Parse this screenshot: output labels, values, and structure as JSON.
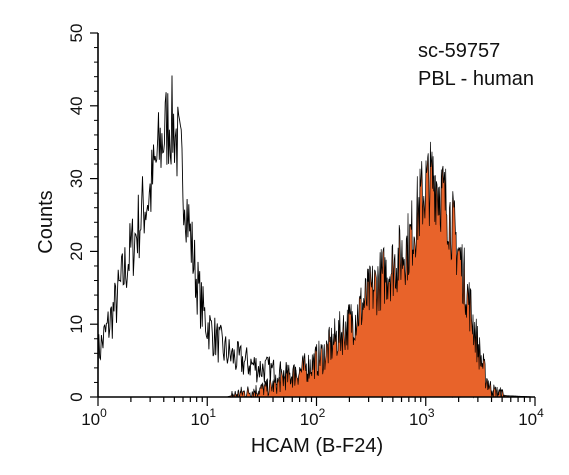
{
  "chart_data": {
    "type": "histogram",
    "xlabel": "HCAM (B-F24)",
    "ylabel": "Counts",
    "xscale": "log",
    "xlim": [
      1,
      10000
    ],
    "ylim": [
      0,
      50
    ],
    "x_ticks": [
      {
        "base": "10",
        "exp": "0"
      },
      {
        "base": "10",
        "exp": "1"
      },
      {
        "base": "10",
        "exp": "2"
      },
      {
        "base": "10",
        "exp": "3"
      },
      {
        "base": "10",
        "exp": "4"
      }
    ],
    "y_ticks": [
      "0",
      "10",
      "20",
      "30",
      "40",
      "50"
    ],
    "annotations": [
      "sc-59757",
      "PBL - human"
    ],
    "series": [
      {
        "style": "outline",
        "color": "#000000",
        "points": [
          [
            1.0,
            6
          ],
          [
            1.2,
            9
          ],
          [
            1.4,
            12
          ],
          [
            1.6,
            15
          ],
          [
            1.8,
            18
          ],
          [
            2.0,
            20
          ],
          [
            2.3,
            23
          ],
          [
            2.6,
            26
          ],
          [
            3.0,
            28
          ],
          [
            3.5,
            33
          ],
          [
            4.0,
            36
          ],
          [
            4.5,
            38
          ],
          [
            5.0,
            37
          ],
          [
            5.6,
            33
          ],
          [
            6.3,
            28
          ],
          [
            7.0,
            22
          ],
          [
            8.0,
            16
          ],
          [
            9.0,
            12
          ],
          [
            10,
            10
          ],
          [
            12,
            8
          ],
          [
            14,
            6.5
          ],
          [
            17,
            5.5
          ],
          [
            20,
            5
          ],
          [
            25,
            4.5
          ],
          [
            30,
            4
          ],
          [
            40,
            3.5
          ],
          [
            50,
            3
          ],
          [
            70,
            2.5
          ],
          [
            100,
            2
          ],
          [
            150,
            1.8
          ],
          [
            200,
            1.5
          ],
          [
            300,
            1.2
          ],
          [
            500,
            1
          ],
          [
            700,
            0.8
          ],
          [
            1000,
            0.6
          ],
          [
            2000,
            0.4
          ],
          [
            3000,
            0.3
          ],
          [
            5000,
            0.2
          ],
          [
            10000,
            0
          ]
        ]
      },
      {
        "style": "filled",
        "color": "#E8632A",
        "points": [
          [
            15,
            0
          ],
          [
            20,
            0.5
          ],
          [
            30,
            1
          ],
          [
            40,
            1.5
          ],
          [
            50,
            2.5
          ],
          [
            60,
            3
          ],
          [
            80,
            4
          ],
          [
            100,
            5
          ],
          [
            120,
            6
          ],
          [
            150,
            8
          ],
          [
            200,
            10
          ],
          [
            250,
            12
          ],
          [
            300,
            14
          ],
          [
            400,
            16.5
          ],
          [
            500,
            18
          ],
          [
            600,
            19.5
          ],
          [
            700,
            21
          ],
          [
            800,
            24
          ],
          [
            900,
            27
          ],
          [
            1000,
            29
          ],
          [
            1200,
            30
          ],
          [
            1400,
            28
          ],
          [
            1600,
            26
          ],
          [
            2000,
            20
          ],
          [
            2500,
            13
          ],
          [
            3000,
            7
          ],
          [
            3500,
            3
          ],
          [
            4000,
            1
          ],
          [
            5000,
            0.3
          ],
          [
            6000,
            0
          ]
        ]
      }
    ]
  }
}
